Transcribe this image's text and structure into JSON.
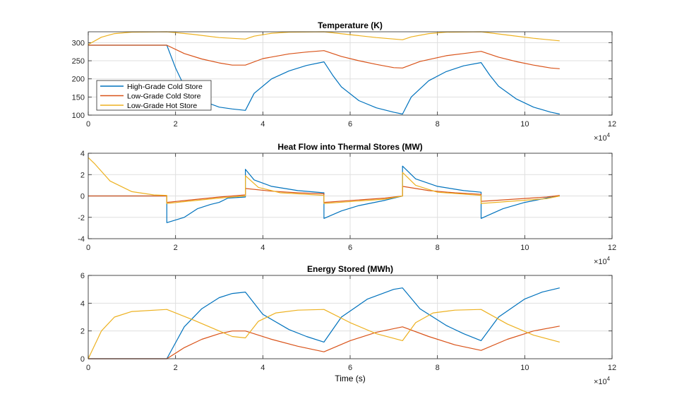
{
  "colors": {
    "series": [
      "#0072BD",
      "#D95319",
      "#EDB120"
    ],
    "grid": "#dfdfdf",
    "axis": "#262626"
  },
  "chart_data": [
    {
      "type": "line",
      "title": "Temperature (K)",
      "xlabel": "",
      "ylabel": "",
      "xlim": [
        0,
        12
      ],
      "ylim": [
        100,
        330
      ],
      "xticks": [
        "0",
        "2",
        "4",
        "6",
        "8",
        "10",
        "12"
      ],
      "yticks": [
        "100",
        "150",
        "200",
        "250",
        "300"
      ],
      "ytick_values": [
        100,
        150,
        200,
        250,
        300
      ],
      "x_exponent": "×10",
      "x_exponent_power": "4",
      "grid": true,
      "legend": "bottom-left",
      "series": [
        {
          "name": "High-Grade Cold Store",
          "x": [
            0,
            1.8,
            2.0,
            2.2,
            2.6,
            3.0,
            3.3,
            3.6,
            3.8,
            4.2,
            4.6,
            5.0,
            5.4,
            5.6,
            5.8,
            6.2,
            6.6,
            7.0,
            7.2,
            7.4,
            7.8,
            8.2,
            8.6,
            9.0,
            9.2,
            9.4,
            9.8,
            10.2,
            10.6,
            10.8
          ],
          "y": [
            293,
            293,
            230,
            180,
            140,
            122,
            117,
            113,
            160,
            200,
            222,
            237,
            247,
            210,
            178,
            140,
            120,
            108,
            103,
            150,
            195,
            220,
            236,
            245,
            210,
            180,
            145,
            122,
            108,
            103
          ]
        },
        {
          "name": "Low-Grade Cold Store",
          "x": [
            0,
            1.8,
            2.2,
            2.6,
            3.0,
            3.3,
            3.6,
            4.0,
            4.6,
            5.0,
            5.4,
            5.8,
            6.2,
            6.6,
            7.0,
            7.2,
            7.6,
            8.2,
            8.6,
            9.0,
            9.4,
            9.8,
            10.2,
            10.6,
            10.8
          ],
          "y": [
            293,
            293,
            270,
            255,
            244,
            238,
            238,
            256,
            269,
            274,
            278,
            262,
            250,
            240,
            231,
            230,
            248,
            264,
            270,
            276,
            260,
            248,
            238,
            230,
            228
          ]
        },
        {
          "name": "Low-Grade Hot Store",
          "x": [
            0,
            0.3,
            0.6,
            1.0,
            1.8,
            2.4,
            3.0,
            3.6,
            3.8,
            4.2,
            4.6,
            5.4,
            6.0,
            6.6,
            7.2,
            7.4,
            7.8,
            8.2,
            9.0,
            9.6,
            10.2,
            10.8
          ],
          "y": [
            295,
            315,
            325,
            329,
            330,
            323,
            314,
            310,
            318,
            326,
            329,
            330,
            322,
            314,
            308,
            316,
            325,
            329,
            330,
            321,
            312,
            305
          ]
        }
      ]
    },
    {
      "type": "line",
      "title": "Heat Flow into Thermal Stores (MW)",
      "xlabel": "",
      "ylabel": "",
      "xlim": [
        0,
        12
      ],
      "ylim": [
        -4,
        4
      ],
      "xticks": [
        "0",
        "2",
        "4",
        "6",
        "8",
        "10",
        "12"
      ],
      "yticks": [
        "-4",
        "-2",
        "0",
        "2",
        "4"
      ],
      "ytick_values": [
        -4,
        -2,
        0,
        2,
        4
      ],
      "x_exponent": "×10",
      "x_exponent_power": "4",
      "grid": true,
      "series": [
        {
          "name": "High-Grade Cold Store",
          "x": [
            0,
            1.8,
            1.8,
            2.2,
            2.5,
            2.8,
            3.0,
            3.2,
            3.6,
            3.6,
            3.8,
            4.2,
            4.8,
            5.4,
            5.4,
            5.8,
            6.2,
            6.8,
            7.2,
            7.2,
            7.5,
            8.0,
            8.6,
            9.0,
            9.0,
            9.5,
            10.0,
            10.5,
            10.8
          ],
          "y": [
            0,
            0,
            -2.5,
            -2.0,
            -1.2,
            -0.8,
            -0.6,
            -0.2,
            -0.1,
            2.5,
            1.5,
            0.9,
            0.5,
            0.3,
            -2.1,
            -1.4,
            -0.9,
            -0.4,
            0,
            2.8,
            1.6,
            0.9,
            0.5,
            0.35,
            -2.1,
            -1.2,
            -0.6,
            -0.2,
            0
          ]
        },
        {
          "name": "Low-Grade Cold Store",
          "x": [
            0,
            1.8,
            1.8,
            3.0,
            3.6,
            3.6,
            4.2,
            4.8,
            5.4,
            5.4,
            6.8,
            7.2,
            7.2,
            7.8,
            8.4,
            9.0,
            9.0,
            10.5,
            10.8
          ],
          "y": [
            0,
            0,
            -0.6,
            -0.1,
            0.1,
            0.7,
            0.45,
            0.3,
            0.2,
            -0.6,
            -0.2,
            0,
            0.9,
            0.5,
            0.3,
            0.15,
            -0.5,
            -0.1,
            0.05
          ]
        },
        {
          "name": "Low-Grade Hot Store",
          "x": [
            0,
            0.15,
            0.5,
            1.0,
            1.5,
            1.8,
            1.8,
            3.0,
            3.6,
            3.6,
            3.9,
            4.4,
            5.4,
            5.4,
            6.8,
            7.2,
            7.2,
            7.5,
            8.0,
            9.0,
            9.0,
            10.5,
            10.8
          ],
          "y": [
            3.6,
            3.0,
            1.4,
            0.4,
            0.1,
            0.05,
            -0.7,
            -0.2,
            0,
            1.9,
            0.8,
            0.3,
            0.05,
            -0.7,
            -0.3,
            0,
            2.2,
            1.0,
            0.35,
            0.05,
            -0.7,
            -0.25,
            0
          ]
        }
      ]
    },
    {
      "type": "line",
      "title": "Energy Stored (MWh)",
      "xlabel": "Time (s)",
      "ylabel": "",
      "xlim": [
        0,
        12
      ],
      "ylim": [
        0,
        6
      ],
      "xticks": [
        "0",
        "2",
        "4",
        "6",
        "8",
        "10",
        "12"
      ],
      "yticks": [
        "0",
        "2",
        "4",
        "6"
      ],
      "ytick_values": [
        0,
        2,
        4,
        6
      ],
      "x_exponent": "×10",
      "x_exponent_power": "4",
      "grid": true,
      "series": [
        {
          "name": "High-Grade Cold Store",
          "x": [
            0,
            1.8,
            2.2,
            2.6,
            3.0,
            3.3,
            3.6,
            4.0,
            4.6,
            5.0,
            5.4,
            5.8,
            6.4,
            7.0,
            7.2,
            7.6,
            8.2,
            8.6,
            9.0,
            9.4,
            10.0,
            10.4,
            10.8
          ],
          "y": [
            0,
            0,
            2.3,
            3.6,
            4.4,
            4.7,
            4.8,
            3.2,
            2.1,
            1.6,
            1.2,
            3.0,
            4.3,
            5.0,
            5.1,
            3.6,
            2.4,
            1.8,
            1.3,
            3.0,
            4.3,
            4.8,
            5.1
          ]
        },
        {
          "name": "Low-Grade Cold Store",
          "x": [
            0,
            1.8,
            2.2,
            2.6,
            3.0,
            3.3,
            3.6,
            4.2,
            4.8,
            5.4,
            6.0,
            6.6,
            7.2,
            7.8,
            8.4,
            9.0,
            9.6,
            10.2,
            10.8
          ],
          "y": [
            0,
            0,
            0.8,
            1.4,
            1.8,
            2.0,
            2.0,
            1.4,
            0.9,
            0.5,
            1.3,
            1.9,
            2.3,
            1.6,
            1.0,
            0.6,
            1.4,
            2.0,
            2.35
          ]
        },
        {
          "name": "Low-Grade Hot Store",
          "x": [
            0,
            0.3,
            0.6,
            1.0,
            1.8,
            2.4,
            3.0,
            3.3,
            3.6,
            3.9,
            4.3,
            4.8,
            5.4,
            6.0,
            6.6,
            7.2,
            7.5,
            7.9,
            8.4,
            9.0,
            9.6,
            10.2,
            10.8
          ],
          "y": [
            0,
            2.0,
            3.0,
            3.4,
            3.55,
            2.8,
            2.0,
            1.6,
            1.5,
            2.7,
            3.3,
            3.5,
            3.55,
            2.6,
            1.8,
            1.3,
            2.6,
            3.3,
            3.5,
            3.55,
            2.5,
            1.7,
            1.2
          ]
        }
      ]
    }
  ]
}
